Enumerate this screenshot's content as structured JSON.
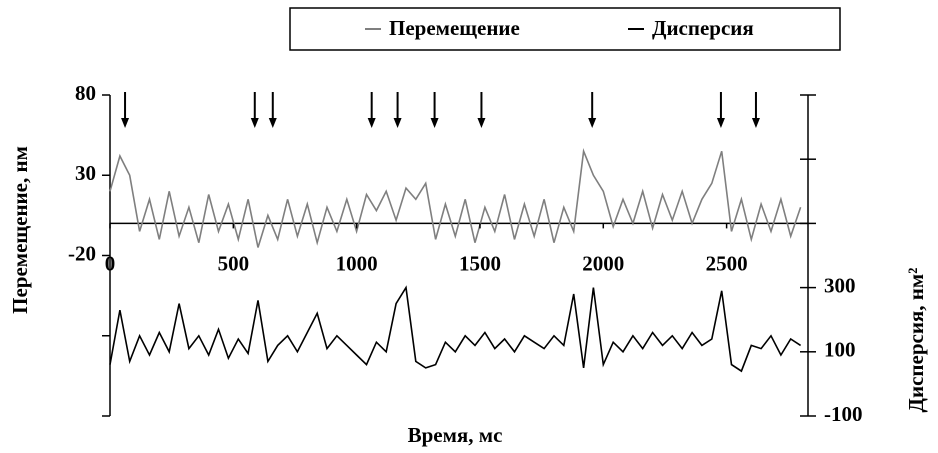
{
  "chart_data": {
    "type": "line",
    "xlabel": "Время, мс",
    "ylabel": "Перемещение, нм",
    "y2label": "Дисперсия, нм²",
    "x": [
      0,
      40,
      80,
      120,
      160,
      200,
      240,
      280,
      320,
      360,
      400,
      440,
      480,
      520,
      560,
      600,
      640,
      680,
      720,
      760,
      800,
      840,
      880,
      920,
      960,
      1000,
      1040,
      1080,
      1120,
      1160,
      1200,
      1240,
      1280,
      1320,
      1360,
      1400,
      1440,
      1480,
      1520,
      1560,
      1600,
      1640,
      1680,
      1720,
      1760,
      1800,
      1840,
      1880,
      1920,
      1960,
      2000,
      2040,
      2080,
      2120,
      2160,
      2200,
      2240,
      2280,
      2320,
      2360,
      2400,
      2440,
      2480,
      2520,
      2560,
      2600,
      2640,
      2680,
      2720,
      2760,
      2800
    ],
    "series": [
      {
        "name": "Перемещение",
        "color": "#7f7f7f",
        "axis": "y",
        "values": [
          20,
          42,
          30,
          -5,
          15,
          -10,
          20,
          -8,
          10,
          -12,
          18,
          -5,
          12,
          -10,
          15,
          -15,
          5,
          -10,
          15,
          -8,
          12,
          -12,
          10,
          -5,
          15,
          -5,
          18,
          8,
          20,
          2,
          22,
          15,
          25,
          -10,
          12,
          -8,
          15,
          -12,
          10,
          -5,
          18,
          -10,
          12,
          -8,
          15,
          -12,
          10,
          -5,
          45,
          30,
          20,
          -2,
          15,
          0,
          20,
          -3,
          18,
          2,
          20,
          0,
          15,
          25,
          45,
          -5,
          15,
          -10,
          12,
          -5,
          15,
          -8,
          10
        ]
      },
      {
        "name": "Дисперсия",
        "color": "#000000",
        "axis": "y2",
        "values": [
          60,
          230,
          70,
          150,
          90,
          160,
          100,
          250,
          110,
          150,
          90,
          170,
          80,
          140,
          95,
          260,
          70,
          120,
          150,
          100,
          160,
          220,
          110,
          150,
          120,
          90,
          60,
          130,
          100,
          250,
          300,
          70,
          50,
          60,
          130,
          100,
          150,
          120,
          160,
          110,
          140,
          100,
          150,
          130,
          110,
          150,
          120,
          280,
          50,
          300,
          60,
          130,
          100,
          150,
          110,
          160,
          120,
          150,
          110,
          160,
          120,
          140,
          290,
          60,
          40,
          120,
          110,
          150,
          90,
          140,
          120
        ]
      }
    ],
    "events": [
      61,
      587,
      660,
      1061,
      1166,
      1316,
      1506,
      1955,
      2477,
      2619
    ],
    "xlim": [
      0,
      2830
    ],
    "xticks": [
      0,
      500,
      1000,
      1500,
      2000,
      2500
    ],
    "ylim": [
      -120,
      80
    ],
    "yticks": [
      -20,
      30,
      80
    ],
    "yminorticks": [
      -70,
      -120
    ],
    "y2lim": [
      -100,
      900
    ],
    "y2ticks": [
      -100,
      100,
      300
    ],
    "y2minorticks": [
      500,
      700,
      900
    ]
  }
}
